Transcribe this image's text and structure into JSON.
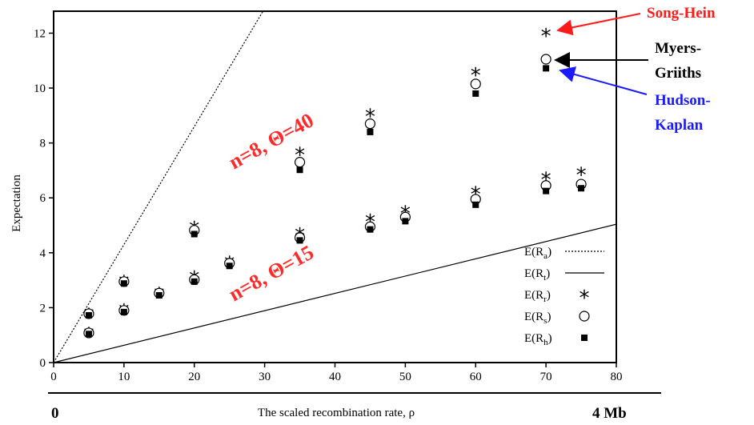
{
  "chart_data": {
    "type": "scatter",
    "xlabel": "The scaled recombination rate, ρ",
    "ylabel": "Expectation",
    "xlim": [
      0,
      80
    ],
    "ylim": [
      0,
      12.8
    ],
    "x_ticks": [
      "0",
      "10",
      "20",
      "30",
      "40",
      "50",
      "60",
      "70",
      "80"
    ],
    "y_ticks": [
      "0",
      "2",
      "4",
      "6",
      "8",
      "10",
      "12"
    ],
    "x_range_start_label": "0",
    "x_range_end_label": "4 Mb",
    "lines": [
      {
        "name_main": "E(R",
        "name_sub": "a",
        "name_close": ")",
        "style": "dotted",
        "slope": 0.43
      },
      {
        "name_main": "E(R",
        "name_sub": "t",
        "name_close": ")",
        "style": "solid",
        "slope": 0.063
      }
    ],
    "legend_markers": [
      {
        "name_main": "E(R",
        "name_sub": "r",
        "name_close": ")",
        "marker": "star"
      },
      {
        "name_main": "E(R",
        "name_sub": "s",
        "name_close": ")",
        "marker": "circle"
      },
      {
        "name_main": "E(R",
        "name_sub": "h",
        "name_close": ")",
        "marker": "square"
      }
    ],
    "groups": [
      {
        "annotation": "n=8,  Θ=40",
        "x": [
          5,
          10,
          15,
          20,
          25,
          35,
          45,
          60,
          70
        ],
        "series": [
          {
            "name": "E(Rr)",
            "values": [
              1.82,
              3.02,
              2.58,
              4.98,
              3.72,
              7.68,
              9.08,
              10.58,
              12.02
            ]
          },
          {
            "name": "E(Rs)",
            "values": [
              1.78,
              2.95,
              2.53,
              4.82,
              3.62,
              7.3,
              8.7,
              10.15,
              11.05
            ]
          },
          {
            "name": "E(Rh)",
            "values": [
              1.72,
              2.88,
              2.45,
              4.68,
              3.52,
              7.02,
              8.4,
              9.8,
              10.72
            ]
          }
        ]
      },
      {
        "annotation": "n=8,  Θ=15",
        "x": [
          5,
          10,
          20,
          35,
          45,
          50,
          60,
          70,
          75
        ],
        "series": [
          {
            "name": "E(Rr)",
            "values": [
              1.12,
              1.98,
              3.18,
              4.75,
              5.25,
              5.55,
              6.25,
              6.78,
              6.95
            ]
          },
          {
            "name": "E(Rs)",
            "values": [
              1.08,
              1.9,
              3.02,
              4.55,
              4.95,
              5.3,
              5.95,
              6.45,
              6.5
            ]
          },
          {
            "name": "E(Rh)",
            "values": [
              1.04,
              1.84,
              2.95,
              4.45,
              4.85,
              5.15,
              5.75,
              6.25,
              6.35
            ]
          }
        ]
      }
    ],
    "callouts": [
      {
        "label": "Song-Hein",
        "color": "#ff1a1a",
        "points_to": "E(Rr)"
      },
      {
        "label": "Myers-Griiths",
        "lines": [
          "Myers-",
          "Griiths"
        ],
        "color": "#000000",
        "points_to": "E(Rs)"
      },
      {
        "label": "Hudson-Kaplan",
        "lines": [
          "Hudson-",
          "Kaplan"
        ],
        "color": "#1a1aff",
        "points_to": "E(Rh)"
      }
    ],
    "grid": false,
    "legend_position": "bottom-right"
  }
}
